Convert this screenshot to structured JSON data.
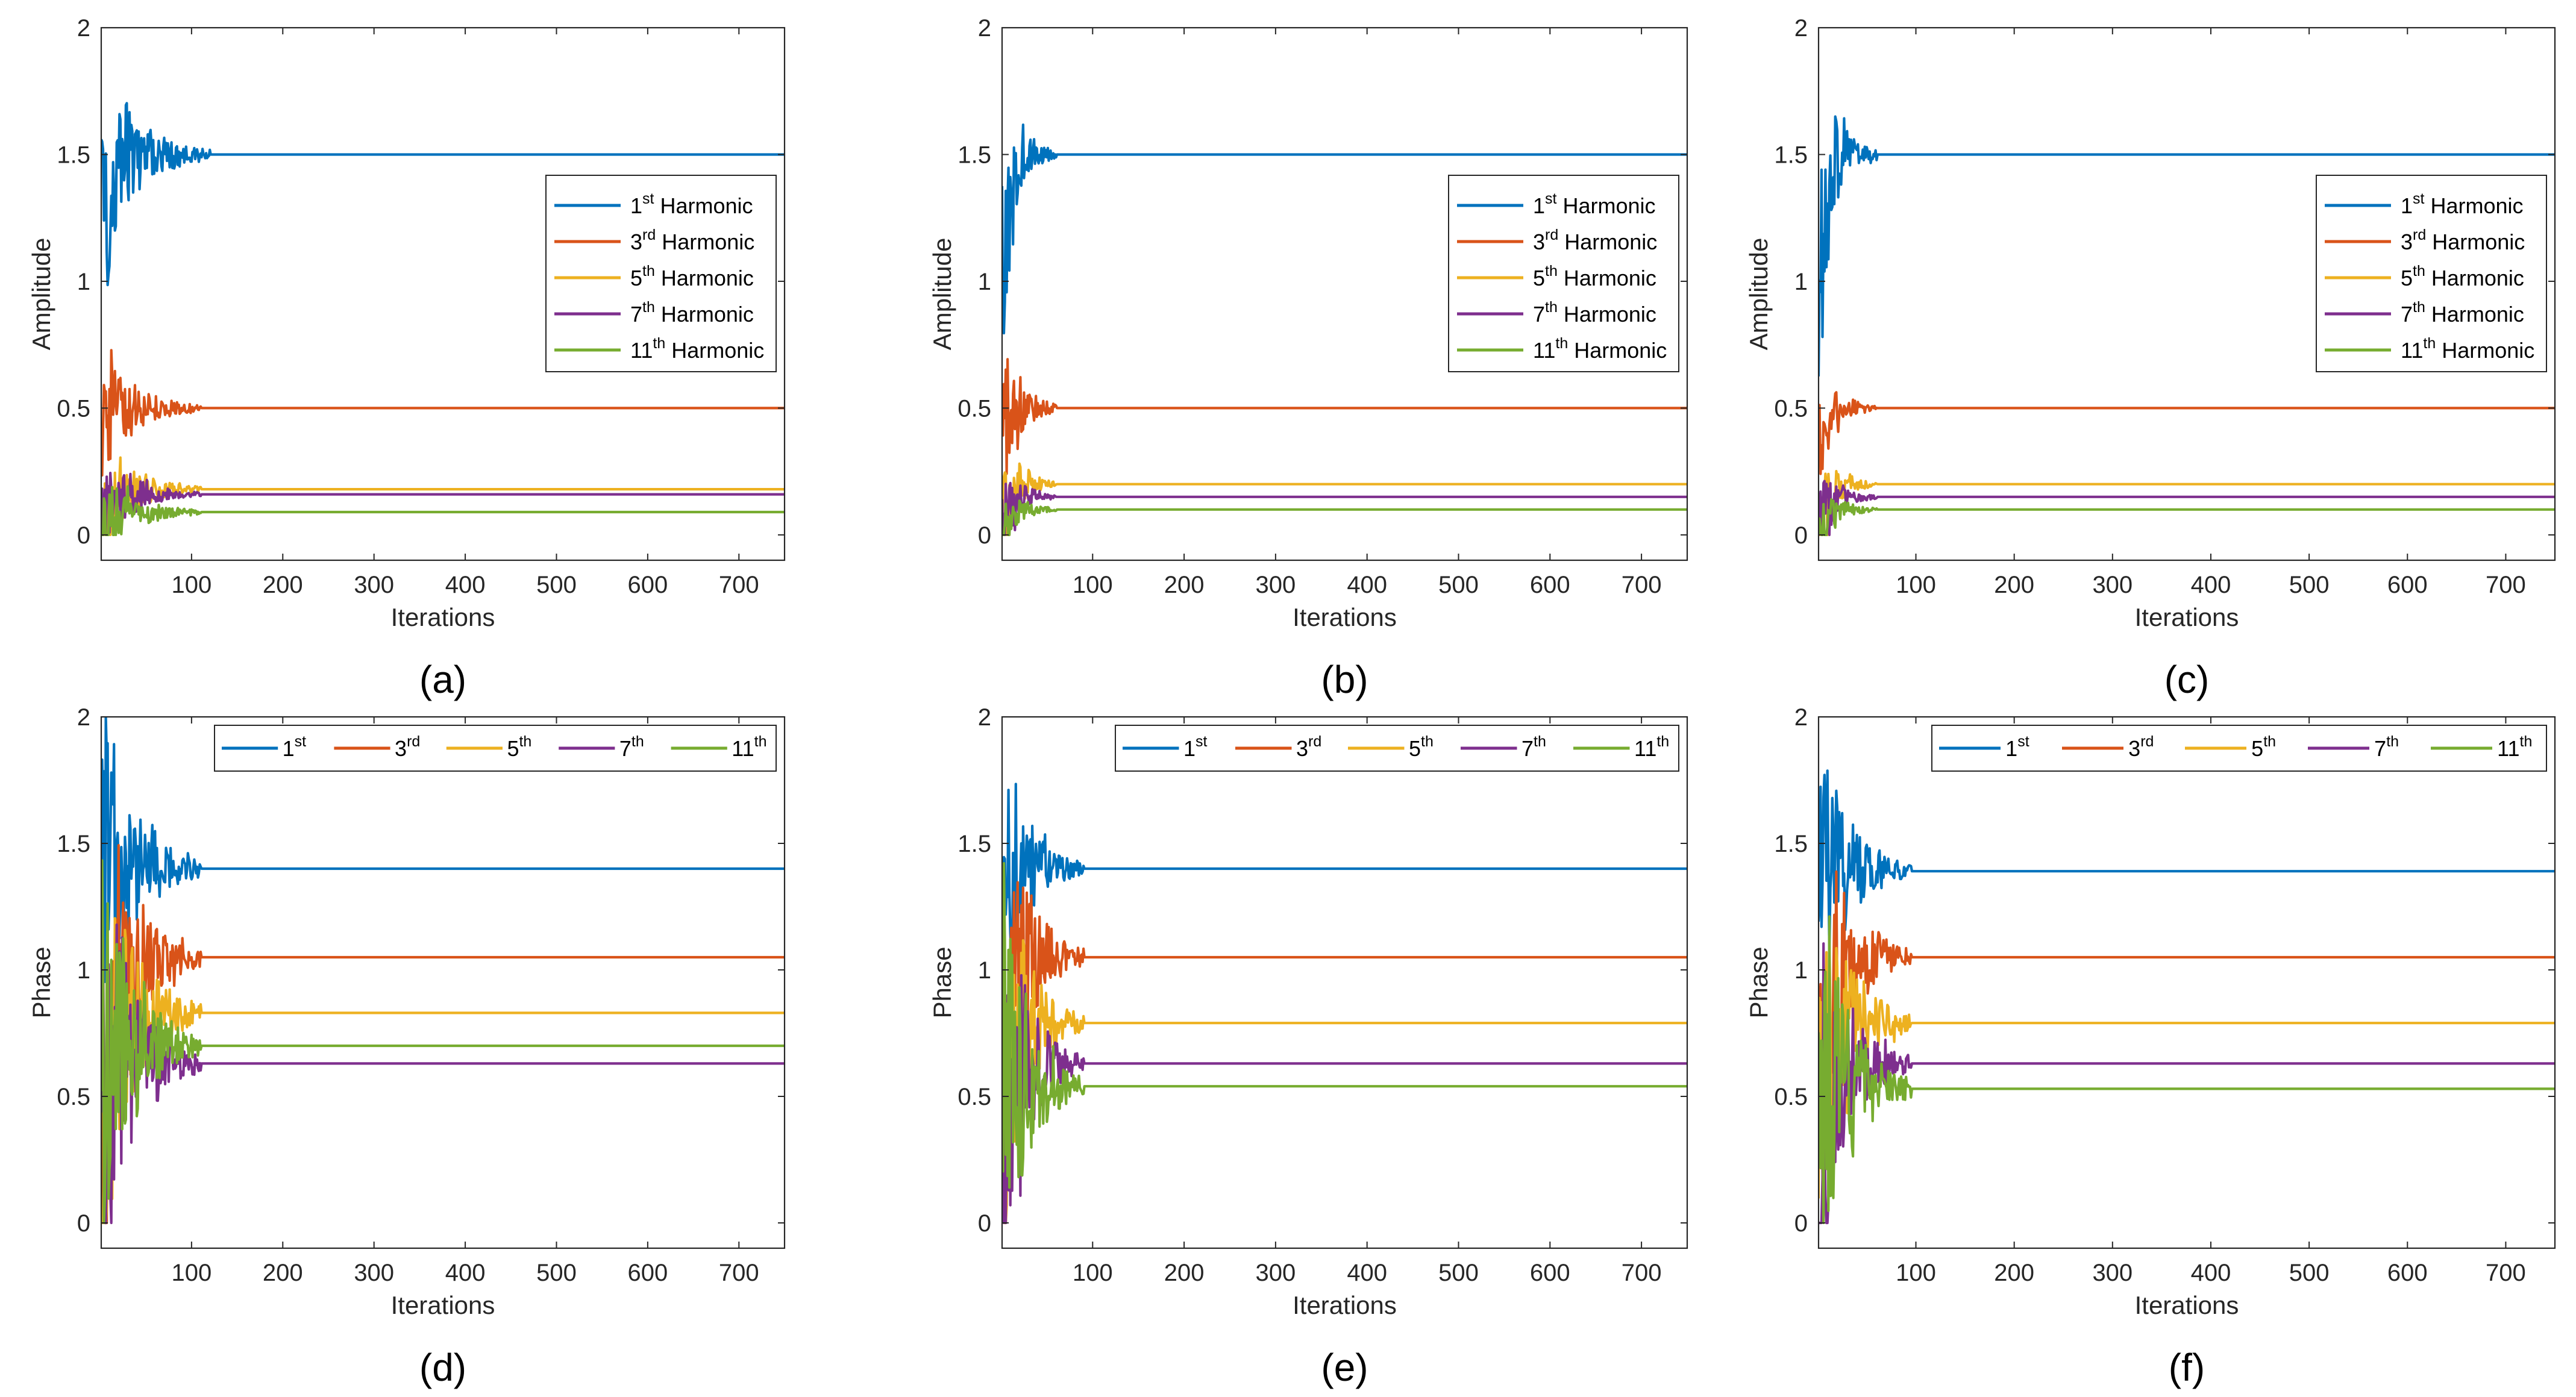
{
  "figure": {
    "series_names": [
      "1st Harmonic",
      "3rd Harmonic",
      "5th Harmonic",
      "7th Harmonic",
      "11th Harmonic"
    ],
    "colors": [
      "#0072BD",
      "#D95319",
      "#EDB120",
      "#7E2F8E",
      "#77AC30"
    ]
  },
  "chart_data": [
    {
      "type": "line",
      "panel_label": "(a)",
      "title": "",
      "xlabel": "Iterations",
      "ylabel": "Amplitude",
      "xlim": [
        1,
        750
      ],
      "ylim": [
        -0.1,
        2
      ],
      "xticks": [
        100,
        200,
        300,
        400,
        500,
        600,
        700
      ],
      "yticks": [
        0,
        0.5,
        1,
        1.5,
        2
      ],
      "legend": {
        "placement": "inside-right",
        "orientation": "vertical",
        "base": [
          "1",
          "3",
          "5",
          "7",
          "11"
        ],
        "sup": [
          "st",
          "rd",
          "th",
          "th",
          "th"
        ],
        "suffix": " Harmonic"
      },
      "series": [
        {
          "name": "1st Harmonic",
          "start": 1.2,
          "final": 1.5,
          "amplitude": 0.45,
          "settle": 120
        },
        {
          "name": "3rd Harmonic",
          "start": 0.4,
          "final": 0.5,
          "amplitude": 0.3,
          "settle": 110
        },
        {
          "name": "5th Harmonic",
          "start": 0.05,
          "final": 0.18,
          "amplitude": 0.25,
          "settle": 110
        },
        {
          "name": "7th Harmonic",
          "start": 0.05,
          "final": 0.16,
          "amplitude": 0.2,
          "settle": 110
        },
        {
          "name": "11th Harmonic",
          "start": 0.0,
          "final": 0.09,
          "amplitude": 0.2,
          "settle": 110
        }
      ]
    },
    {
      "type": "line",
      "panel_label": "(b)",
      "title": "",
      "xlabel": "Iterations",
      "ylabel": "Amplitude",
      "xlim": [
        1,
        750
      ],
      "ylim": [
        -0.1,
        2
      ],
      "xticks": [
        100,
        200,
        300,
        400,
        500,
        600,
        700
      ],
      "yticks": [
        0,
        0.5,
        1,
        1.5,
        2
      ],
      "legend": {
        "placement": "inside-right",
        "orientation": "vertical",
        "base": [
          "1",
          "3",
          "5",
          "7",
          "11"
        ],
        "sup": [
          "st",
          "rd",
          "th",
          "th",
          "th"
        ],
        "suffix": " Harmonic"
      },
      "series": [
        {
          "name": "1st Harmonic",
          "start": 1.0,
          "final": 1.5,
          "amplitude": 0.4,
          "settle": 60
        },
        {
          "name": "3rd Harmonic",
          "start": 0.4,
          "final": 0.5,
          "amplitude": 0.38,
          "settle": 60
        },
        {
          "name": "5th Harmonic",
          "start": 0.05,
          "final": 0.2,
          "amplitude": 0.25,
          "settle": 60
        },
        {
          "name": "7th Harmonic",
          "start": 0.05,
          "final": 0.15,
          "amplitude": 0.2,
          "settle": 60
        },
        {
          "name": "11th Harmonic",
          "start": 0.0,
          "final": 0.1,
          "amplitude": 0.15,
          "settle": 60
        }
      ]
    },
    {
      "type": "line",
      "panel_label": "(c)",
      "title": "",
      "xlabel": "Iterations",
      "ylabel": "Amplitude",
      "xlim": [
        1,
        750
      ],
      "ylim": [
        -0.1,
        2
      ],
      "xticks": [
        100,
        200,
        300,
        400,
        500,
        600,
        700
      ],
      "yticks": [
        0,
        0.5,
        1,
        1.5,
        2
      ],
      "legend": {
        "placement": "inside-right",
        "orientation": "vertical",
        "base": [
          "1",
          "3",
          "5",
          "7",
          "11"
        ],
        "sup": [
          "st",
          "rd",
          "th",
          "th",
          "th"
        ],
        "suffix": " Harmonic"
      },
      "series": [
        {
          "name": "1st Harmonic",
          "start": 1.0,
          "final": 1.5,
          "amplitude": 0.45,
          "settle": 60
        },
        {
          "name": "3rd Harmonic",
          "start": 0.4,
          "final": 0.5,
          "amplitude": 0.22,
          "settle": 60
        },
        {
          "name": "5th Harmonic",
          "start": 0.05,
          "final": 0.2,
          "amplitude": 0.22,
          "settle": 60
        },
        {
          "name": "7th Harmonic",
          "start": 0.05,
          "final": 0.15,
          "amplitude": 0.2,
          "settle": 60
        },
        {
          "name": "11th Harmonic",
          "start": 0.0,
          "final": 0.1,
          "amplitude": 0.15,
          "settle": 60
        }
      ]
    },
    {
      "type": "line",
      "panel_label": "(d)",
      "title": "",
      "xlabel": "Iterations",
      "ylabel": "Phase",
      "xlim": [
        1,
        750
      ],
      "ylim": [
        -0.1,
        2
      ],
      "xticks": [
        100,
        200,
        300,
        400,
        500,
        600,
        700
      ],
      "yticks": [
        0,
        0.5,
        1,
        1.5,
        2
      ],
      "legend": {
        "placement": "top",
        "orientation": "horizontal",
        "base": [
          "1",
          "3",
          "5",
          "7",
          "11"
        ],
        "sup": [
          "st",
          "rd",
          "th",
          "th",
          "th"
        ],
        "suffix": ""
      },
      "series": [
        {
          "name": "1st",
          "start": 1.5,
          "final": 1.4,
          "amplitude": 0.8,
          "settle": 110
        },
        {
          "name": "3rd",
          "start": 0.5,
          "final": 1.05,
          "amplitude": 0.9,
          "settle": 110
        },
        {
          "name": "5th",
          "start": 0.2,
          "final": 0.83,
          "amplitude": 0.9,
          "settle": 110
        },
        {
          "name": "7th",
          "start": 0.1,
          "final": 0.63,
          "amplitude": 0.9,
          "settle": 110
        },
        {
          "name": "11th",
          "start": 0.6,
          "final": 0.7,
          "amplitude": 0.9,
          "settle": 110
        }
      ]
    },
    {
      "type": "line",
      "panel_label": "(e)",
      "title": "",
      "xlabel": "Iterations",
      "ylabel": "Phase",
      "xlim": [
        1,
        750
      ],
      "ylim": [
        -0.1,
        2
      ],
      "xticks": [
        100,
        200,
        300,
        400,
        500,
        600,
        700
      ],
      "yticks": [
        0,
        0.5,
        1,
        1.5,
        2
      ],
      "legend": {
        "placement": "top",
        "orientation": "horizontal",
        "base": [
          "1",
          "3",
          "5",
          "7",
          "11"
        ],
        "sup": [
          "st",
          "rd",
          "th",
          "th",
          "th"
        ],
        "suffix": ""
      },
      "series": [
        {
          "name": "1st",
          "start": 1.5,
          "final": 1.4,
          "amplitude": 0.6,
          "settle": 90
        },
        {
          "name": "3rd",
          "start": 0.3,
          "final": 1.05,
          "amplitude": 0.8,
          "settle": 90
        },
        {
          "name": "5th",
          "start": 0.1,
          "final": 0.79,
          "amplitude": 0.8,
          "settle": 90
        },
        {
          "name": "7th",
          "start": 0.1,
          "final": 0.63,
          "amplitude": 0.8,
          "settle": 90
        },
        {
          "name": "11th",
          "start": 0.6,
          "final": 0.54,
          "amplitude": 0.9,
          "settle": 90
        }
      ]
    },
    {
      "type": "line",
      "panel_label": "(f)",
      "title": "",
      "xlabel": "Iterations",
      "ylabel": "Phase",
      "xlim": [
        1,
        750
      ],
      "ylim": [
        -0.1,
        2
      ],
      "xticks": [
        100,
        200,
        300,
        400,
        500,
        600,
        700
      ],
      "yticks": [
        0,
        0.5,
        1,
        1.5,
        2
      ],
      "legend": {
        "placement": "top",
        "orientation": "horizontal",
        "base": [
          "1",
          "3",
          "5",
          "7",
          "11"
        ],
        "sup": [
          "st",
          "rd",
          "th",
          "th",
          "th"
        ],
        "suffix": ""
      },
      "series": [
        {
          "name": "1st",
          "start": 1.5,
          "final": 1.39,
          "amplitude": 0.6,
          "settle": 95
        },
        {
          "name": "3rd",
          "start": 0.4,
          "final": 1.05,
          "amplitude": 0.8,
          "settle": 95
        },
        {
          "name": "5th",
          "start": 0.2,
          "final": 0.79,
          "amplitude": 0.8,
          "settle": 95
        },
        {
          "name": "7th",
          "start": 0.2,
          "final": 0.63,
          "amplitude": 0.8,
          "settle": 95
        },
        {
          "name": "11th",
          "start": 0.6,
          "final": 0.53,
          "amplitude": 0.9,
          "settle": 95
        }
      ]
    }
  ]
}
